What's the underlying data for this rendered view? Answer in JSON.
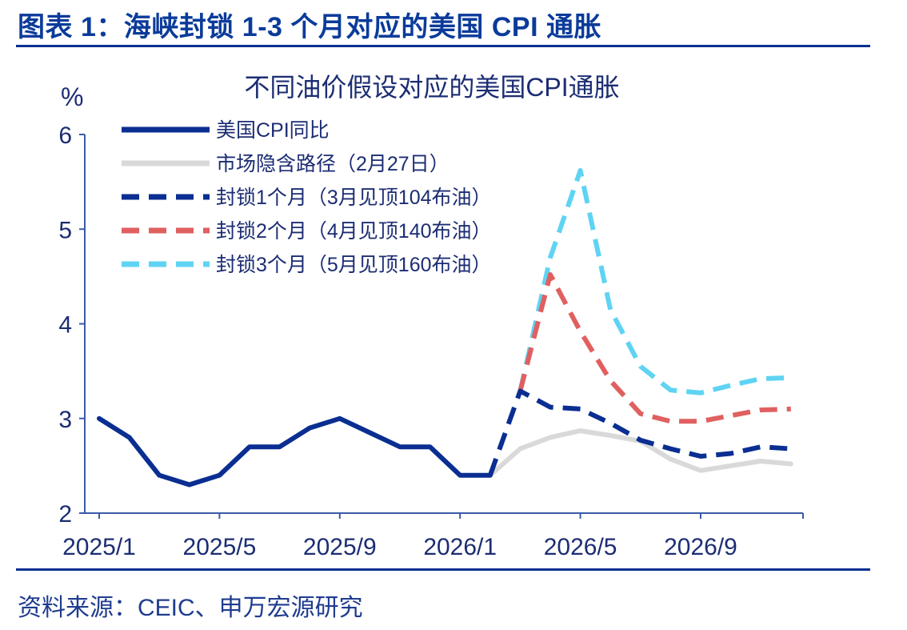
{
  "figure_title": "图表 1：海峡封锁 1-3 个月对应的美国 CPI 通胀",
  "source": "资料来源：CEIC、申万宏源研究",
  "colors": {
    "header": "#0b3b9a",
    "actual": "#0a2e91",
    "market": "#d9d9d9",
    "m1": "#0a2e91",
    "m2": "#e06060",
    "m3": "#5fd3f3"
  },
  "chart_data": {
    "type": "line",
    "title": "不同油价假设对应的美国CPI通胀",
    "ylabel": "%",
    "ylim": [
      2,
      6
    ],
    "yticks": [
      2,
      3,
      4,
      5,
      6
    ],
    "x_tick_labels": [
      "2025/1",
      "2025/5",
      "2025/9",
      "2026/1",
      "2026/5",
      "2026/9"
    ],
    "x_tick_months": [
      "2025-01",
      "2025-05",
      "2025-09",
      "2026-01",
      "2026-05",
      "2026-09"
    ],
    "legend_placement": "top-left",
    "series": [
      {
        "name": "美国CPI同比",
        "style": "solid",
        "color": "#0a2e91",
        "x": [
          "2025-01",
          "2025-02",
          "2025-03",
          "2025-04",
          "2025-05",
          "2025-06",
          "2025-07",
          "2025-08",
          "2025-09",
          "2025-10",
          "2025-11",
          "2025-12",
          "2026-01",
          "2026-02"
        ],
        "values": [
          3.0,
          2.8,
          2.4,
          2.3,
          2.4,
          2.7,
          2.7,
          2.9,
          3.0,
          2.85,
          2.7,
          2.7,
          2.4,
          2.4
        ]
      },
      {
        "name": "市场隐含路径（2月27日）",
        "style": "solid",
        "color": "#d9d9d9",
        "x": [
          "2026-02",
          "2026-03",
          "2026-04",
          "2026-05",
          "2026-06",
          "2026-07",
          "2026-08",
          "2026-09",
          "2026-10",
          "2026-11",
          "2026-12"
        ],
        "values": [
          2.4,
          2.68,
          2.8,
          2.87,
          2.82,
          2.76,
          2.57,
          2.45,
          2.5,
          2.55,
          2.52
        ]
      },
      {
        "name": "封锁1个月（3月见顶104布油）",
        "style": "dashed",
        "color": "#0a2e91",
        "x": [
          "2026-02",
          "2026-03",
          "2026-04",
          "2026-05",
          "2026-06",
          "2026-07",
          "2026-08",
          "2026-09",
          "2026-10",
          "2026-11",
          "2026-12"
        ],
        "values": [
          2.4,
          3.29,
          3.12,
          3.1,
          2.95,
          2.77,
          2.68,
          2.6,
          2.63,
          2.7,
          2.68
        ]
      },
      {
        "name": "封锁2个月（4月见顶140布油）",
        "style": "dashed",
        "color": "#e06060",
        "x": [
          "2026-03",
          "2026-04",
          "2026-05",
          "2026-06",
          "2026-07",
          "2026-08",
          "2026-09",
          "2026-10",
          "2026-11",
          "2026-12"
        ],
        "values": [
          3.29,
          4.52,
          3.92,
          3.4,
          3.05,
          2.97,
          2.97,
          3.03,
          3.09,
          3.1
        ]
      },
      {
        "name": "封锁3个月（5月见顶160布油）",
        "style": "dashed",
        "color": "#5fd3f3",
        "x": [
          "2026-03",
          "2026-04",
          "2026-05",
          "2026-06",
          "2026-07",
          "2026-08",
          "2026-09",
          "2026-10",
          "2026-11",
          "2026-12"
        ],
        "values": [
          3.29,
          4.7,
          5.62,
          4.15,
          3.55,
          3.3,
          3.27,
          3.35,
          3.42,
          3.43
        ]
      }
    ]
  }
}
